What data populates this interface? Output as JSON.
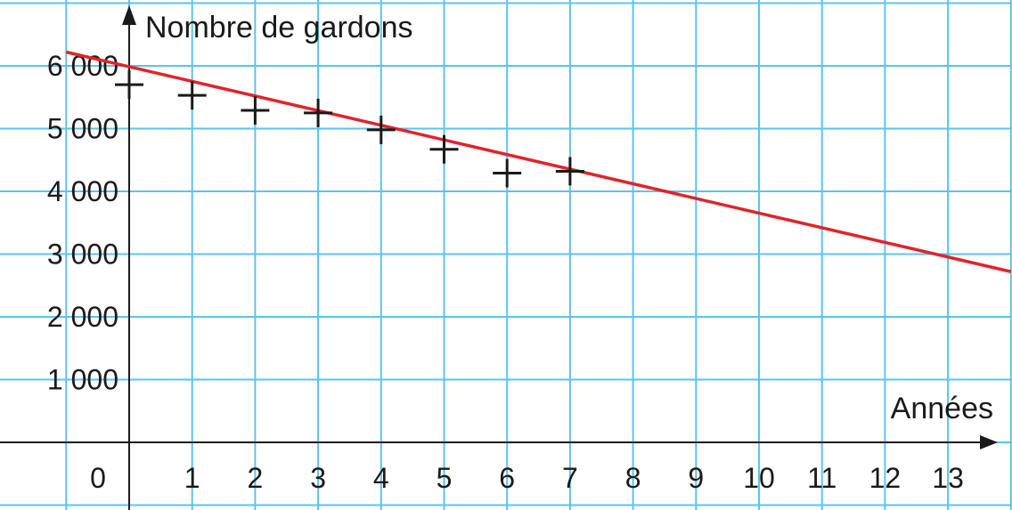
{
  "chart_data": {
    "type": "scatter",
    "xlabel": "Années",
    "ylabel": "Nombre de gardons",
    "xlim": [
      -1,
      14
    ],
    "ylim": [
      -1000,
      6700
    ],
    "x_ticks": [
      0,
      1,
      2,
      3,
      4,
      5,
      6,
      7,
      8,
      9,
      10,
      11,
      12,
      13
    ],
    "y_ticks": [
      1000,
      2000,
      3000,
      4000,
      5000,
      6000
    ],
    "x_tick_labels": [
      "0",
      "1",
      "2",
      "3",
      "4",
      "5",
      "6",
      "7",
      "8",
      "9",
      "10",
      "11",
      "12",
      "13"
    ],
    "y_tick_labels": [
      "1 000",
      "2 000",
      "3 000",
      "4 000",
      "5 000",
      "6 000"
    ],
    "grid": true,
    "points": [
      {
        "x": 0,
        "y": 5700
      },
      {
        "x": 1,
        "y": 5530
      },
      {
        "x": 2,
        "y": 5290
      },
      {
        "x": 3,
        "y": 5250
      },
      {
        "x": 4,
        "y": 4980
      },
      {
        "x": 5,
        "y": 4670
      },
      {
        "x": 6,
        "y": 4290
      },
      {
        "x": 7,
        "y": 4320
      }
    ],
    "trend_line": {
      "x": [
        -1,
        14
      ],
      "y": [
        6220,
        2720
      ],
      "color": "#e0242b"
    },
    "colors": {
      "grid": "#5bc4ea",
      "axis": "#1a1a1a",
      "marker": "#1a1a1a",
      "trend": "#e0242b"
    }
  }
}
